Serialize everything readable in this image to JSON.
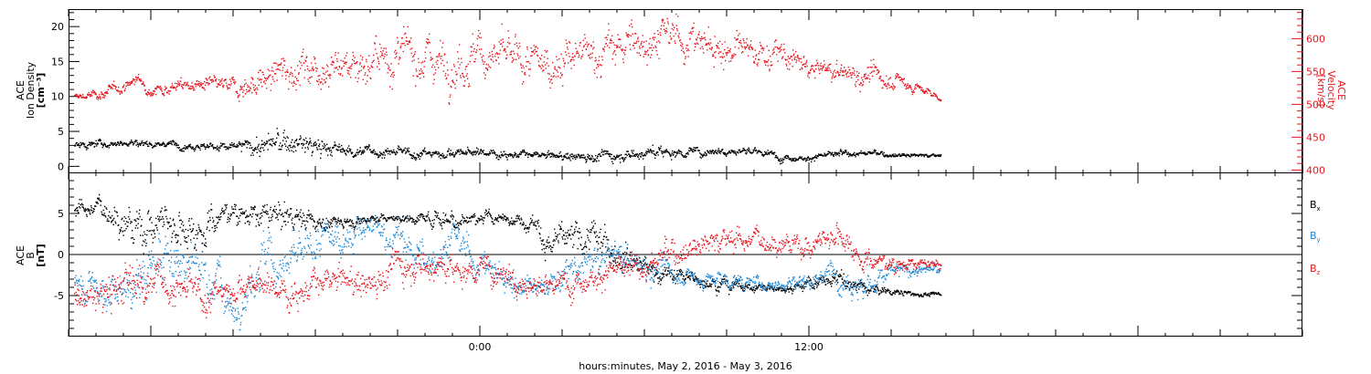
{
  "colors": {
    "axis": "#000000",
    "red": "#e8161e",
    "blue": "#1f8ad8",
    "black": "#000000"
  },
  "xlabel": "hours:minutes, May  2, 2016 - May  3, 2016",
  "chart_data": [
    {
      "type": "scatter",
      "panel": "top",
      "x_range_hours": [
        -15,
        30
      ],
      "x_ticks": [
        {
          "hour": 0,
          "label": "0:00"
        },
        {
          "hour": 12,
          "label": "12:00"
        }
      ],
      "left_axis": {
        "label_lines": [
          "ACE",
          "Ion Density",
          "[cm⁻³]"
        ],
        "ylim": [
          -1,
          22.5
        ],
        "ticks": [
          0,
          5,
          10,
          15,
          20
        ],
        "tick_labels": [
          "0",
          "5",
          "10",
          "15",
          "20"
        ]
      },
      "right_axis": {
        "label_lines": [
          "ACE",
          "Velocity",
          "[km/s]"
        ],
        "ylim": [
          395,
          645
        ],
        "ticks": [
          400,
          450,
          500,
          550,
          600
        ],
        "tick_labels": [
          "400",
          "450",
          "500",
          "550",
          "600"
        ]
      },
      "series": [
        {
          "color": "red",
          "axis": "right",
          "x": [
            -14.8,
            -14,
            -13,
            -12.5,
            -12,
            -11,
            -10,
            -9,
            -8,
            -7,
            -6,
            -5,
            -4,
            -3,
            -2,
            -1,
            0,
            1,
            2,
            3,
            4,
            5,
            6,
            7,
            8,
            9,
            10,
            11,
            12,
            13,
            14,
            15,
            16,
            16.8
          ],
          "y": [
            512,
            515,
            528,
            540,
            522,
            530,
            530,
            526,
            535,
            555,
            560,
            562,
            565,
            575,
            575,
            565,
            578,
            570,
            560,
            568,
            575,
            588,
            600,
            605,
            595,
            585,
            580,
            575,
            555,
            550,
            545,
            540,
            525,
            510
          ],
          "spread": [
            4,
            6,
            6,
            5,
            6,
            8,
            8,
            10,
            18,
            20,
            22,
            22,
            24,
            24,
            24,
            26,
            26,
            24,
            22,
            24,
            24,
            24,
            24,
            22,
            22,
            20,
            18,
            16,
            12,
            14,
            12,
            12,
            6,
            3
          ]
        },
        {
          "color": "black",
          "axis": "left",
          "x": [
            -14.8,
            -13,
            -11,
            -9,
            -8,
            -7,
            -6,
            -5,
            -4,
            -2,
            0,
            2,
            4,
            6,
            8,
            9,
            10,
            11,
            12,
            13,
            14,
            15,
            16,
            16.8
          ],
          "y": [
            3.0,
            3.5,
            3.2,
            2.8,
            3.0,
            3.5,
            2.8,
            2.4,
            2.2,
            1.9,
            2.1,
            1.6,
            1.5,
            2.0,
            2.2,
            2.4,
            2.2,
            1.4,
            1.3,
            1.8,
            2.0,
            1.8,
            1.7,
            1.6
          ],
          "spread": [
            0.4,
            0.4,
            0.4,
            0.5,
            1.3,
            1.5,
            1.0,
            0.6,
            0.6,
            0.5,
            0.5,
            0.4,
            0.6,
            0.7,
            0.5,
            0.4,
            0.5,
            0.4,
            0.3,
            0.4,
            0.3,
            0.3,
            0.2,
            0.2
          ]
        }
      ]
    },
    {
      "type": "scatter",
      "panel": "bottom",
      "x_range_hours": [
        -15,
        30
      ],
      "x_ticks": [
        {
          "hour": 0,
          "label": "0:00"
        },
        {
          "hour": 12,
          "label": "12:00"
        }
      ],
      "left_axis": {
        "label_lines": [
          "ACE",
          "B",
          "[nT]"
        ],
        "ylim": [
          -10,
          10
        ],
        "ticks": [
          -5,
          0,
          5
        ],
        "tick_labels": [
          "-5",
          "0",
          "5"
        ]
      },
      "zero_line": true,
      "legend": [
        {
          "text": "B",
          "sub": "x",
          "color": "black"
        },
        {
          "text": "B",
          "sub": "y",
          "color": "blue"
        },
        {
          "text": "B",
          "sub": "z",
          "color": "red"
        }
      ],
      "series": [
        {
          "name": "Bx",
          "color": "black",
          "x": [
            -14.8,
            -13.5,
            -12.5,
            -11.5,
            -10.5,
            -9,
            -8,
            -7,
            -6,
            -5,
            -4,
            -3,
            -2,
            -1,
            0,
            1,
            2,
            2.5,
            3,
            4,
            5,
            6,
            7,
            8,
            9,
            10,
            11,
            12,
            13,
            14,
            15,
            16,
            16.8
          ],
          "y": [
            6.0,
            5.5,
            3.0,
            4.5,
            3.0,
            5.5,
            4.5,
            5.0,
            4.0,
            4.0,
            4.5,
            4.5,
            4.5,
            4.5,
            4.5,
            4.5,
            4.0,
            1.0,
            1.5,
            2.0,
            1.0,
            -1.5,
            -2.5,
            -3.0,
            -3.5,
            -4.0,
            -4.0,
            -3.5,
            -3.0,
            -4.0,
            -4.5,
            -4.8,
            -4.8
          ],
          "spread": [
            0.6,
            1.2,
            2.2,
            1.8,
            2.0,
            1.0,
            1.2,
            1.2,
            0.8,
            0.6,
            0.4,
            0.4,
            0.6,
            1.0,
            0.6,
            0.4,
            0.8,
            1.6,
            1.4,
            1.4,
            1.6,
            1.0,
            0.8,
            0.6,
            0.6,
            0.4,
            0.4,
            0.6,
            0.8,
            0.6,
            0.3,
            0.2,
            0.2
          ]
        },
        {
          "name": "By",
          "color": "blue",
          "x": [
            -14.8,
            -13.5,
            -12.5,
            -11.5,
            -10.5,
            -9.5,
            -9,
            -8,
            -7,
            -6,
            -5,
            -4,
            -3,
            -2,
            -1,
            0,
            1,
            2,
            3,
            4,
            5,
            6,
            7,
            8,
            9,
            10,
            11,
            12,
            13,
            14,
            15,
            16,
            16.8
          ],
          "y": [
            -3.0,
            -4.5,
            -3.5,
            0.0,
            -1.0,
            -3.0,
            -7.5,
            0.0,
            -1.5,
            1.0,
            2.5,
            3.0,
            2.0,
            -1.0,
            2.0,
            -1.0,
            -3.0,
            -4.5,
            -2.5,
            -1.0,
            0.0,
            -1.5,
            -2.0,
            -3.0,
            -3.0,
            -3.5,
            -3.5,
            -3.0,
            -2.0,
            -4.0,
            -2.0,
            -1.8,
            -1.8
          ],
          "spread": [
            1.4,
            1.6,
            2.0,
            2.4,
            2.4,
            2.0,
            1.0,
            2.4,
            2.0,
            1.8,
            1.6,
            1.4,
            1.6,
            1.8,
            1.6,
            1.4,
            1.2,
            1.0,
            1.2,
            1.4,
            1.6,
            1.2,
            1.0,
            0.8,
            0.8,
            0.6,
            0.6,
            0.8,
            1.2,
            1.4,
            0.8,
            0.6,
            0.5
          ]
        },
        {
          "name": "Bz",
          "color": "red",
          "x": [
            -14.8,
            -14,
            -13,
            -12,
            -11,
            -10,
            -9,
            -8,
            -7,
            -6,
            -5,
            -4,
            -3,
            -2,
            -1,
            0,
            1,
            2,
            3,
            4,
            5,
            6,
            7,
            8,
            9,
            10,
            11,
            12,
            13,
            14,
            15,
            16,
            16.8
          ],
          "y": [
            -4.5,
            -5.5,
            -3.5,
            -3.0,
            -4.0,
            -5.0,
            -4.0,
            -3.5,
            -4.5,
            -4.0,
            -3.0,
            -3.5,
            -1.0,
            -1.0,
            -2.0,
            -1.5,
            -2.0,
            -4.0,
            -3.5,
            -2.5,
            -2.0,
            -1.5,
            0.5,
            1.5,
            2.0,
            2.0,
            1.5,
            1.0,
            3.0,
            -0.5,
            -1.0,
            -1.2,
            -1.2
          ],
          "spread": [
            1.4,
            1.6,
            1.8,
            1.8,
            1.6,
            1.4,
            1.2,
            1.2,
            1.4,
            1.4,
            1.4,
            1.6,
            1.6,
            1.6,
            1.4,
            1.2,
            1.4,
            1.2,
            1.2,
            1.2,
            1.2,
            1.2,
            1.4,
            1.2,
            1.2,
            1.0,
            1.0,
            1.2,
            1.2,
            1.0,
            0.8,
            0.5,
            0.4
          ]
        }
      ]
    }
  ]
}
